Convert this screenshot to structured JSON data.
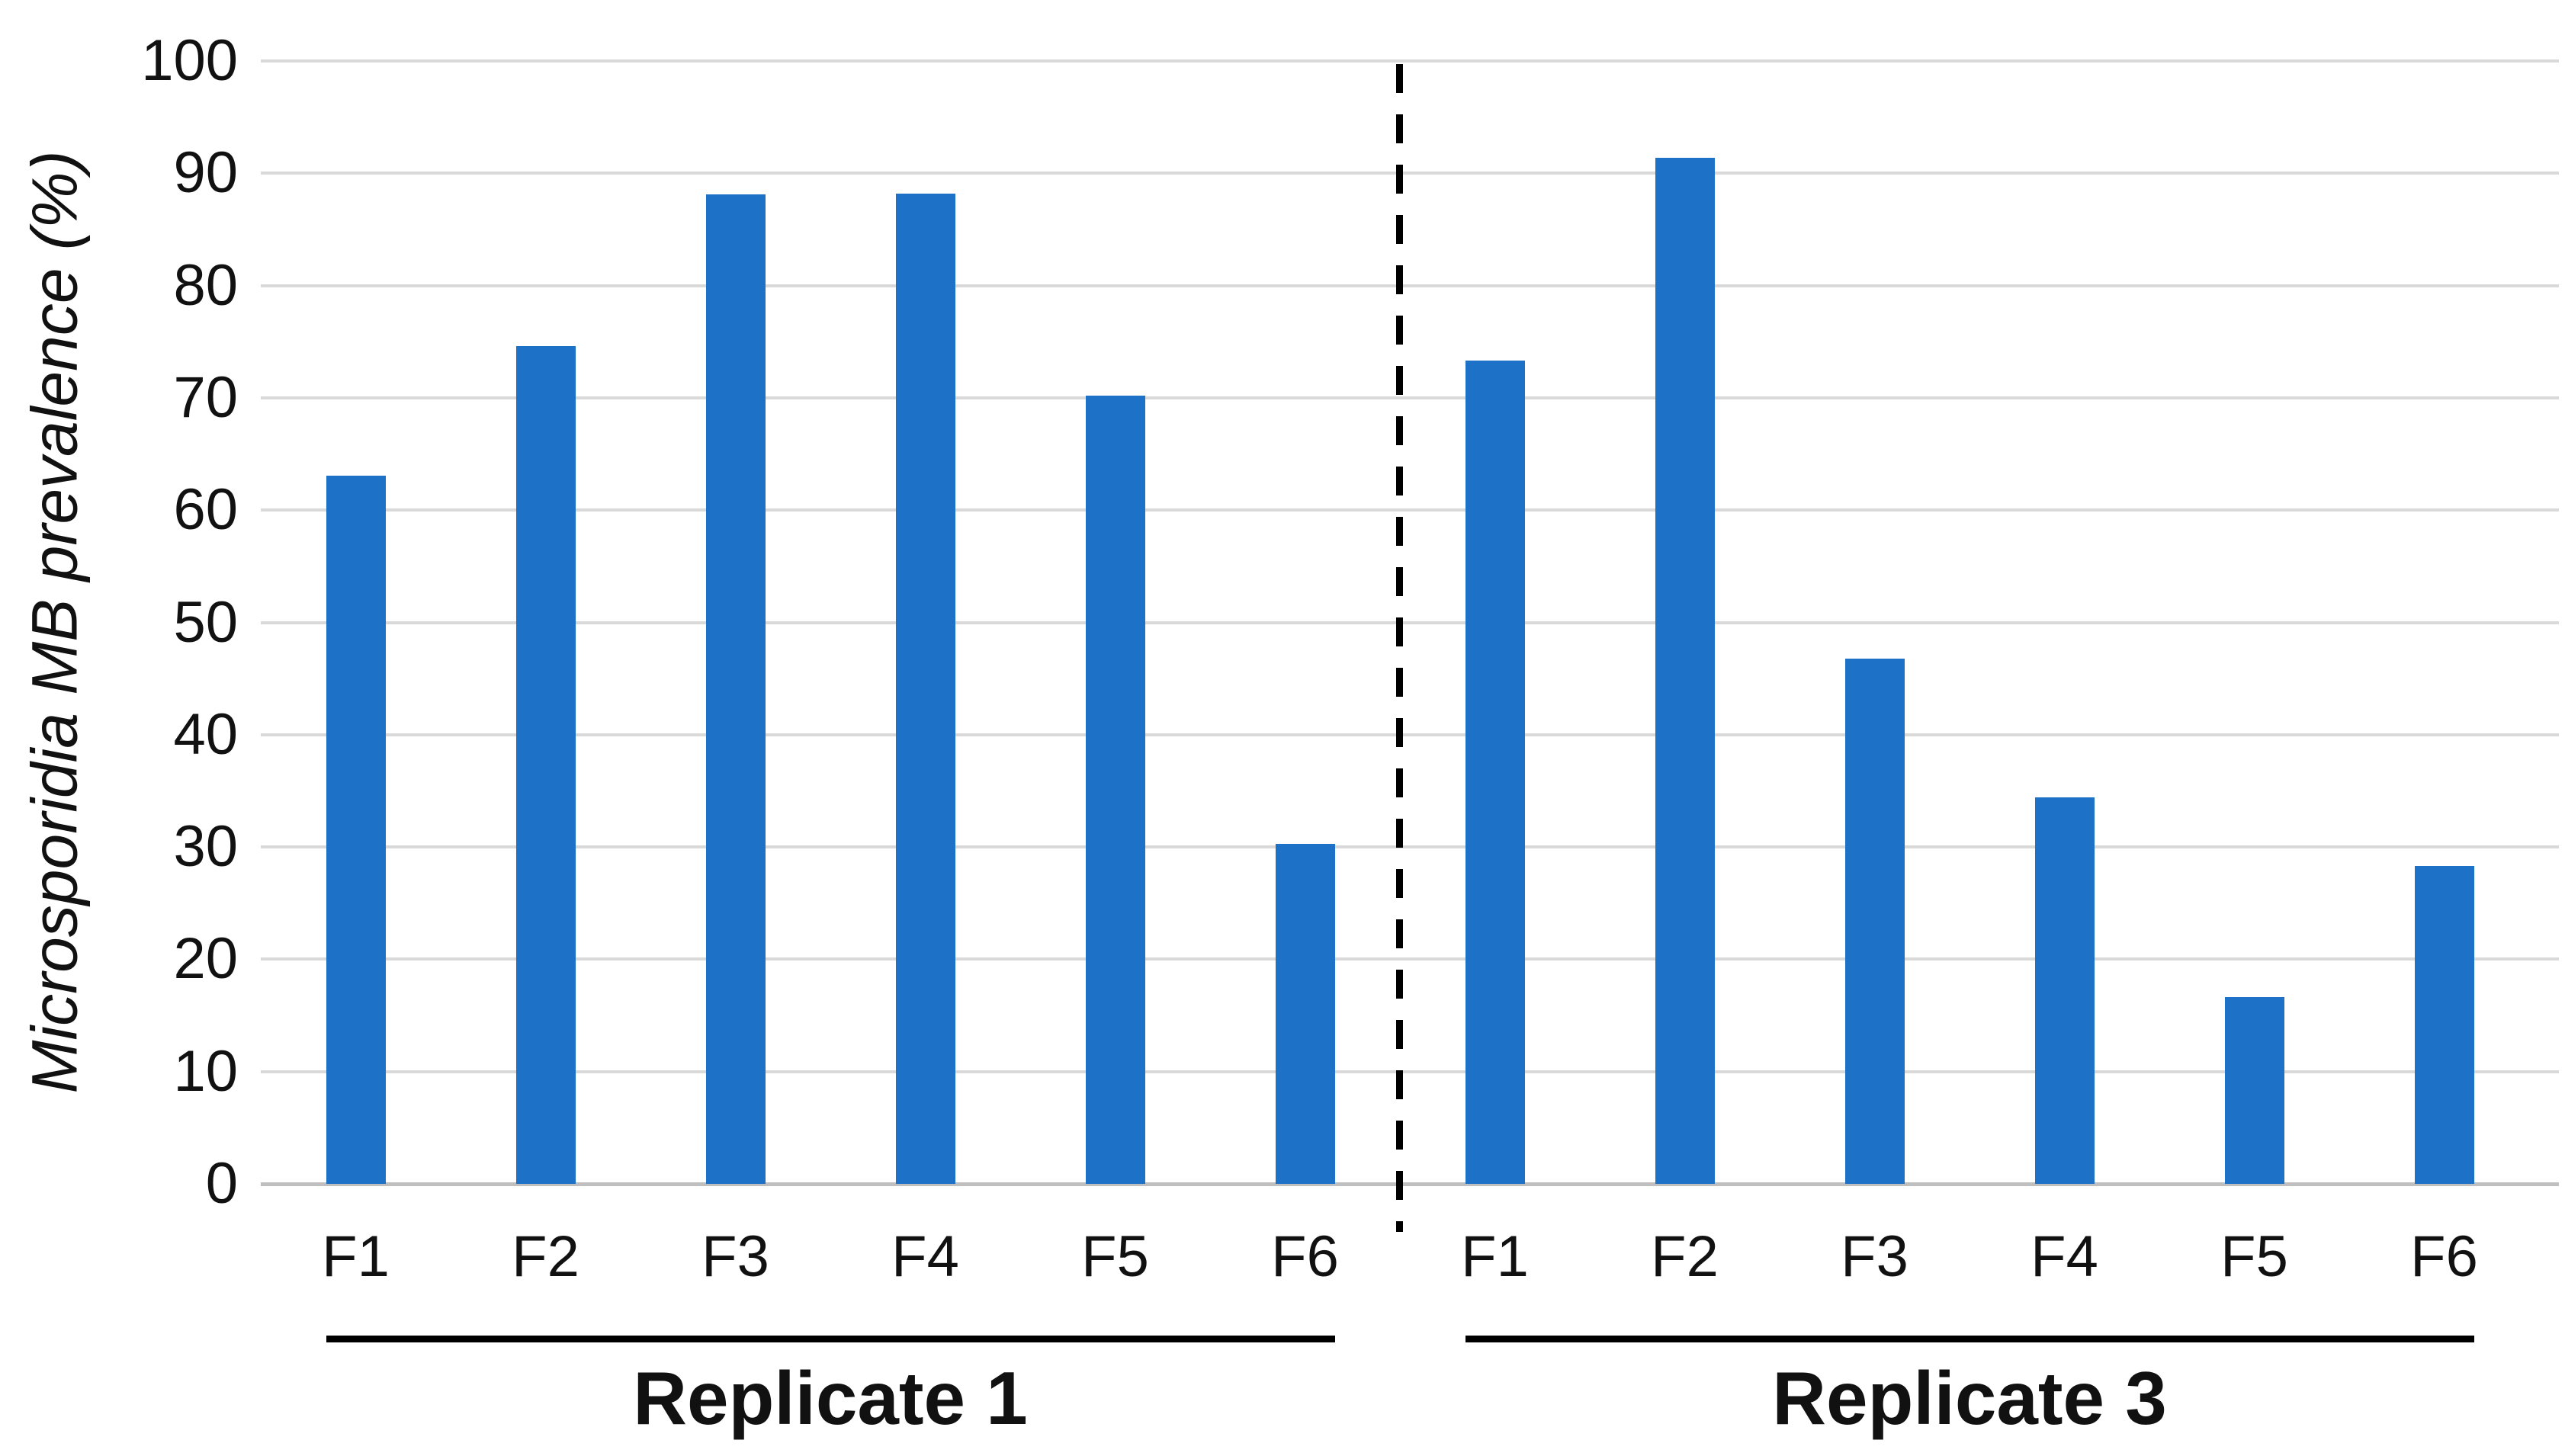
{
  "chart_data": {
    "type": "bar",
    "title": "",
    "ylabel": "Microsporidia MB prevalence (%)",
    "ylabel_italic": true,
    "xlabel": "",
    "ylim": [
      0,
      100
    ],
    "ytick_interval": 10,
    "yticks": [
      0,
      10,
      20,
      30,
      40,
      50,
      60,
      70,
      80,
      90,
      100
    ],
    "grid": "horizontal",
    "legend": "none",
    "bar_color": "#1d72c8",
    "gridline_color": "#d9d9d9",
    "baseline_color": "#bfbfbf",
    "separator_style": "black-dashed-vertical-line",
    "groups": [
      {
        "label": "Replicate 1",
        "categories": [
          "F1",
          "F2",
          "F3",
          "F4",
          "F5",
          "F6"
        ],
        "values": [
          63.1,
          74.6,
          88.1,
          88.2,
          70.2,
          30.3
        ]
      },
      {
        "label": "Replicate 3",
        "categories": [
          "F1",
          "F2",
          "F3",
          "F4",
          "F5",
          "F6"
        ],
        "values": [
          73.3,
          91.4,
          46.8,
          34.4,
          16.6,
          28.3
        ]
      }
    ]
  },
  "layout_note": "vertical dashed divider between replicate groups; each group underlined with label beneath"
}
